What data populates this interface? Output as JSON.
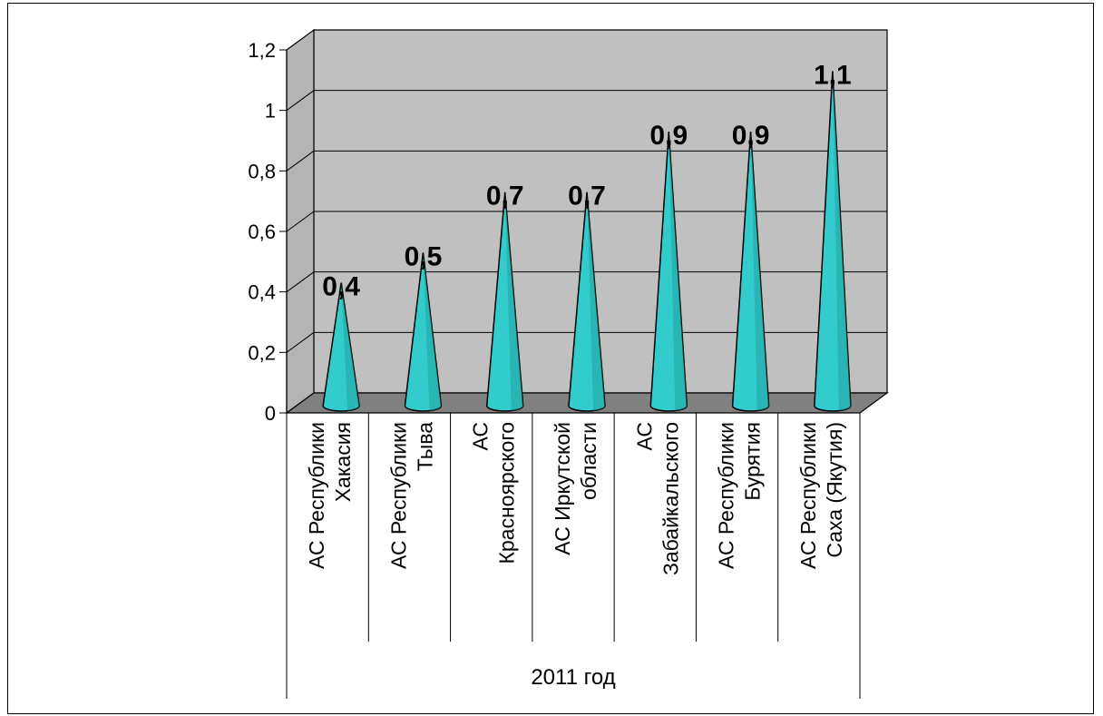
{
  "chart_data": {
    "type": "bar",
    "shape": "cone-3d",
    "title": "",
    "xlabel": "",
    "ylabel": "",
    "ylim": [
      0,
      1.2
    ],
    "yticks": [
      "0",
      "0,2",
      "0,4",
      "0,6",
      "0,8",
      "1",
      "1,2"
    ],
    "grid": true,
    "legend": "none",
    "group_label": "2011 год",
    "categories": [
      [
        "АС Республики",
        "Хакасия"
      ],
      [
        "АС Республики",
        "Тыва"
      ],
      [
        "АС",
        "Красноярского"
      ],
      [
        "АС Иркутской",
        "области"
      ],
      [
        "АС",
        "Забайкальского"
      ],
      [
        "АС Республики",
        "Бурятия"
      ],
      [
        "АС Республики",
        "Саха (Якутия)"
      ]
    ],
    "values": [
      0.4,
      0.5,
      0.7,
      0.7,
      0.9,
      0.9,
      1.1
    ],
    "data_labels": [
      "0,4",
      "0,5",
      "0,7",
      "0,7",
      "0,9",
      "0,9",
      "1,1"
    ],
    "colors": {
      "cone": "#33cccc",
      "cone_dark": "#1f9a9a",
      "back_wall": "#c0c0c0",
      "side_wall": "#b4b4b4",
      "floor": "#808080"
    }
  }
}
